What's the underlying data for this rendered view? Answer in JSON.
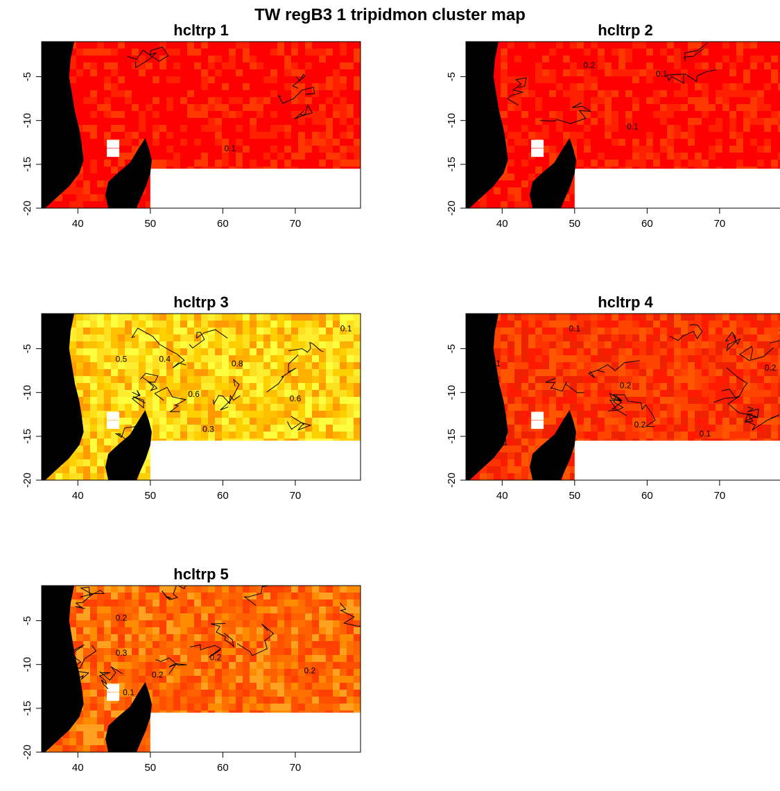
{
  "title": "TW regB3 1 tripidmon cluster map",
  "colors": {
    "land": "#000000",
    "heat_low": "#ff0000",
    "heat_mid": "#ff8c00",
    "heat_high": "#ffff40",
    "nodata": "#ffffff",
    "contour": "#000000"
  },
  "chart_data": [
    {
      "type": "heatmap",
      "title": "hcltrp 1",
      "xlabel": "",
      "ylabel": "",
      "xlim": [
        35,
        79
      ],
      "ylim": [
        -20,
        -1
      ],
      "xticks": [
        "40",
        "50",
        "60",
        "70"
      ],
      "yticks": [
        "-5",
        "-10",
        "-15",
        "-20"
      ],
      "contour_labels": [
        {
          "text": "0.1",
          "x": 61,
          "y": -13.5
        }
      ],
      "dominant_level": "low"
    },
    {
      "type": "heatmap",
      "title": "hcltrp 2",
      "xlabel": "",
      "ylabel": "",
      "xlim": [
        35,
        79
      ],
      "ylim": [
        -20,
        -1
      ],
      "xticks": [
        "40",
        "50",
        "60",
        "70"
      ],
      "yticks": [
        "-5",
        "-10",
        "-15",
        "-20"
      ],
      "contour_labels": [
        {
          "text": "0.2",
          "x": 52,
          "y": -4
        },
        {
          "text": "0.1",
          "x": 58,
          "y": -11
        },
        {
          "text": "0.1",
          "x": 62,
          "y": -5
        }
      ],
      "dominant_level": "low"
    },
    {
      "type": "heatmap",
      "title": "hcltrp 3",
      "xlabel": "",
      "ylabel": "",
      "xlim": [
        35,
        79
      ],
      "ylim": [
        -20,
        -1
      ],
      "xticks": [
        "40",
        "50",
        "60",
        "70"
      ],
      "yticks": [
        "-5",
        "-10",
        "-15",
        "-20"
      ],
      "contour_labels": [
        {
          "text": "0.5",
          "x": 46,
          "y": -6.5
        },
        {
          "text": "0.4",
          "x": 52,
          "y": -6.5
        },
        {
          "text": "0.6",
          "x": 56,
          "y": -10.5
        },
        {
          "text": "0.8",
          "x": 62,
          "y": -7
        },
        {
          "text": "0.3",
          "x": 58,
          "y": -14.5
        },
        {
          "text": "0.6",
          "x": 70,
          "y": -11
        },
        {
          "text": "0.1",
          "x": 77,
          "y": -3
        }
      ],
      "dominant_level": "high"
    },
    {
      "type": "heatmap",
      "title": "hcltrp 4",
      "xlabel": "",
      "ylabel": "",
      "xlim": [
        35,
        79
      ],
      "ylim": [
        -20,
        -1
      ],
      "xticks": [
        "40",
        "50",
        "60",
        "70"
      ],
      "yticks": [
        "-5",
        "-10",
        "-15",
        "-20"
      ],
      "contour_labels": [
        {
          "text": "0.1",
          "x": 50,
          "y": -3
        },
        {
          "text": "0.1",
          "x": 39,
          "y": -7
        },
        {
          "text": "0.2",
          "x": 57,
          "y": -9.5
        },
        {
          "text": "0.2",
          "x": 59,
          "y": -14
        },
        {
          "text": "0.1",
          "x": 68,
          "y": -15
        },
        {
          "text": "0.2",
          "x": 77,
          "y": -7.5
        },
        {
          "text": "0.1",
          "x": 40,
          "y": -16
        }
      ],
      "dominant_level": "low-mid"
    },
    {
      "type": "heatmap",
      "title": "hcltrp 5",
      "xlabel": "",
      "ylabel": "",
      "xlim": [
        35,
        79
      ],
      "ylim": [
        -20,
        -1
      ],
      "xticks": [
        "40",
        "50",
        "60",
        "70"
      ],
      "yticks": [
        "-5",
        "-10",
        "-15",
        "-20"
      ],
      "contour_labels": [
        {
          "text": "0.2",
          "x": 46,
          "y": -5
        },
        {
          "text": "0.3",
          "x": 46,
          "y": -9
        },
        {
          "text": "0.2",
          "x": 59,
          "y": -9.5
        },
        {
          "text": "0.2",
          "x": 51,
          "y": -11.5
        },
        {
          "text": "0.2",
          "x": 38,
          "y": -12
        },
        {
          "text": "0.1",
          "x": 47,
          "y": -13.5
        },
        {
          "text": "0.2",
          "x": 72,
          "y": -11
        }
      ],
      "dominant_level": "mid"
    }
  ]
}
